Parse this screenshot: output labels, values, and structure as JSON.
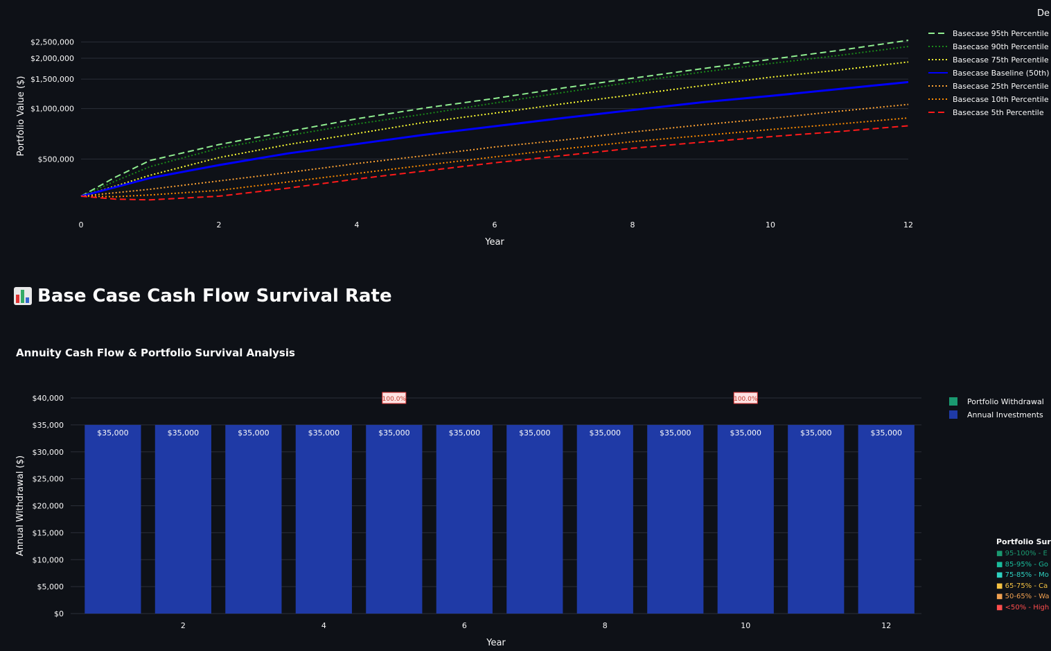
{
  "header": {
    "cut_off_text": "De"
  },
  "section": {
    "icon": "bar-chart-icon",
    "title": "Base Case Cash Flow Survival Rate"
  },
  "chart2_title": "Annuity Cash Flow & Portfolio Survival Analysis",
  "chart_data": [
    {
      "type": "line",
      "title": "",
      "xlabel": "Year",
      "ylabel": "Portfolio Value ($)",
      "y_scale": "log",
      "xlim": [
        0,
        12
      ],
      "ylim": [
        255000,
        2900000
      ],
      "grid": true,
      "legend_position": "top-right",
      "x_ticks": [
        0,
        2,
        4,
        6,
        8,
        10,
        12
      ],
      "y_ticks": [
        {
          "value": 500000,
          "label": "$500,000"
        },
        {
          "value": 1000000,
          "label": "$1,000,000"
        },
        {
          "value": 1500000,
          "label": "$1,500,000"
        },
        {
          "value": 2000000,
          "label": "$2,000,000"
        },
        {
          "value": 2500000,
          "label": "$2,500,000"
        }
      ],
      "series": [
        {
          "name": "Basecase 95th Percentile",
          "color": "#90ee90",
          "dash": "dash",
          "x": [
            0,
            0.5,
            1,
            2,
            3,
            4,
            5,
            6,
            7,
            8,
            9,
            10,
            11,
            12
          ],
          "y": [
            300000,
            390000,
            490000,
            610000,
            730000,
            870000,
            1010000,
            1150000,
            1330000,
            1520000,
            1730000,
            1970000,
            2230000,
            2560000
          ]
        },
        {
          "name": "Basecase 90th Percentile",
          "color": "#1a8a1a",
          "dash": "dot",
          "x": [
            0,
            0.5,
            1,
            2,
            3,
            4,
            5,
            6,
            7,
            8,
            9,
            10,
            11,
            12
          ],
          "y": [
            300000,
            370000,
            450000,
            580000,
            690000,
            810000,
            930000,
            1080000,
            1250000,
            1440000,
            1650000,
            1860000,
            2080000,
            2350000
          ]
        },
        {
          "name": "Basecase 75th Percentile",
          "color": "#ffff33",
          "dash": "dot",
          "x": [
            0,
            0.5,
            1,
            2,
            3,
            4,
            5,
            6,
            7,
            8,
            9,
            10,
            11,
            12
          ],
          "y": [
            300000,
            345000,
            400000,
            510000,
            610000,
            710000,
            830000,
            940000,
            1070000,
            1210000,
            1370000,
            1540000,
            1700000,
            1900000
          ]
        },
        {
          "name": "Basecase Baseline (50th)",
          "color": "#0000ff",
          "dash": "solid",
          "x": [
            0,
            1,
            2,
            3,
            4,
            5,
            6,
            7,
            8,
            9,
            10,
            11,
            12
          ],
          "y": [
            300000,
            385000,
            460000,
            540000,
            615000,
            700000,
            785000,
            880000,
            980000,
            1090000,
            1190000,
            1310000,
            1440000
          ]
        },
        {
          "name": "Basecase 25th Percentile",
          "color": "#ffa333",
          "dash": "dot",
          "x": [
            0,
            1,
            2,
            3,
            4,
            5,
            6,
            7,
            8,
            9,
            10,
            11,
            12
          ],
          "y": [
            300000,
            330000,
            370000,
            415000,
            470000,
            525000,
            590000,
            650000,
            725000,
            800000,
            875000,
            965000,
            1060000
          ]
        },
        {
          "name": "Basecase 10th Percentile",
          "color": "#ff8c00",
          "dash": "dot",
          "x": [
            0,
            0.5,
            1,
            2,
            3,
            4,
            5,
            6,
            7,
            8,
            9,
            10,
            11,
            12
          ],
          "y": [
            300000,
            298000,
            305000,
            325000,
            365000,
            410000,
            460000,
            515000,
            575000,
            635000,
            690000,
            750000,
            810000,
            880000
          ]
        },
        {
          "name": "Basecase 5th Percentile",
          "color": "#ff1a1a",
          "dash": "dash",
          "x": [
            0,
            0.5,
            1,
            2,
            3,
            4,
            5,
            6,
            7,
            8,
            9,
            10,
            11,
            12
          ],
          "y": [
            300000,
            288000,
            285000,
            300000,
            335000,
            380000,
            425000,
            475000,
            525000,
            580000,
            630000,
            680000,
            730000,
            790000
          ]
        }
      ]
    },
    {
      "type": "bar",
      "title": "Annuity Cash Flow & Portfolio Survival Analysis",
      "xlabel": "Year",
      "ylabel": "Annual Withdrawal ($)",
      "xlim": [
        0.4,
        12.5
      ],
      "ylim": [
        0,
        40000
      ],
      "grid": true,
      "legend_position": "top-right",
      "x_ticks": [
        2,
        4,
        6,
        8,
        10,
        12
      ],
      "y_ticks": [
        {
          "value": 0,
          "label": "$0"
        },
        {
          "value": 5000,
          "label": "$5,000"
        },
        {
          "value": 10000,
          "label": "$10,000"
        },
        {
          "value": 15000,
          "label": "$15,000"
        },
        {
          "value": 20000,
          "label": "$20,000"
        },
        {
          "value": 25000,
          "label": "$25,000"
        },
        {
          "value": 30000,
          "label": "$30,000"
        },
        {
          "value": 35000,
          "label": "$35,000"
        },
        {
          "value": 40000,
          "label": "$40,000"
        }
      ],
      "categories": [
        1,
        2,
        3,
        4,
        5,
        6,
        7,
        8,
        9,
        10,
        11,
        12
      ],
      "series": [
        {
          "name": "Portfolio Withdrawal",
          "color": "#1a9970",
          "values": [
            0,
            0,
            0,
            0,
            0,
            0,
            0,
            0,
            0,
            0,
            0,
            0
          ]
        },
        {
          "name": "Annual Investments",
          "color": "#1f3aa6",
          "values": [
            35000,
            35000,
            35000,
            35000,
            35000,
            35000,
            35000,
            35000,
            35000,
            35000,
            35000,
            35000
          ],
          "labels": [
            "$35,000",
            "$35,000",
            "$35,000",
            "$35,000",
            "$35,000",
            "$35,000",
            "$35,000",
            "$35,000",
            "$35,000",
            "$35,000",
            "$35,000",
            "$35,000"
          ]
        }
      ],
      "annotations": [
        {
          "x": 5,
          "y": 40000,
          "text": "100.0%"
        },
        {
          "x": 10,
          "y": 40000,
          "text": "100.0%"
        }
      ],
      "survival_legend": {
        "title": "Portfolio Sur",
        "items": [
          {
            "text": "■ 95-100% - E",
            "color": "#1a9970"
          },
          {
            "text": "■ 85-95% - Go",
            "color": "#1abc9c"
          },
          {
            "text": "■ 75-85% - Mo",
            "color": "#2ed1c0"
          },
          {
            "text": "■ 65-75% - Ca",
            "color": "#f5c242"
          },
          {
            "text": "■ 50-65% - Wa",
            "color": "#f0a050"
          },
          {
            "text": "■ <50% - High",
            "color": "#ff4d4d"
          }
        ]
      }
    }
  ]
}
